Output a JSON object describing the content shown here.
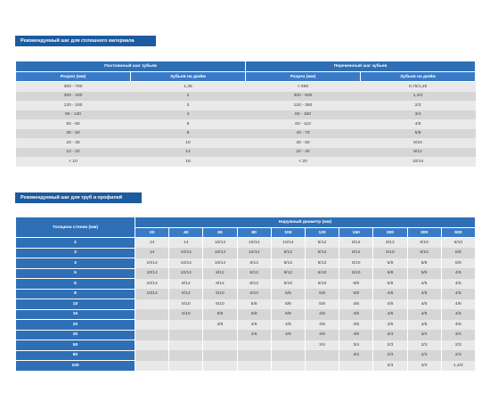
{
  "section1": {
    "title": "Рекомендуемый шаг для сплошного материала"
  },
  "table1": {
    "group_headers": [
      "Постоянный шаг зубьев",
      "Переменный шаг зубьев"
    ],
    "sub_headers": [
      "Разрез (мм)",
      "Зубьев на дюйм",
      "Разрез (мм)",
      "Зубьев на дюйм"
    ],
    "rows": [
      [
        "300 - 700",
        "1,25",
        "> 550",
        "0,75/1,25"
      ],
      [
        "300 - 400",
        "2",
        "300 - 600",
        "1,4/2"
      ],
      [
        "120 - 200",
        "3",
        "120 - 350",
        "2/3"
      ],
      [
        "80 - 120",
        "4",
        "80 - 150",
        "3/4"
      ],
      [
        "50 - 80",
        "6",
        "60 - 110",
        "4/6"
      ],
      [
        "30 - 50",
        "8",
        "40 - 70",
        "5/8"
      ],
      [
        "20 - 30",
        "10",
        "30 - 60",
        "6/10"
      ],
      [
        "10 - 20",
        "14",
        "20 - 40",
        "8/12"
      ],
      [
        "< 10",
        "18",
        "< 20",
        "10/14"
      ]
    ]
  },
  "section2": {
    "title": "Рекомендуемый шаг для труб и профилей"
  },
  "table2": {
    "corner_header": "Толщина стенки (мм)",
    "group_header": "Наружный диаметр (мм)",
    "diameters": [
      "20",
      "40",
      "60",
      "80",
      "100",
      "120",
      "150",
      "200",
      "300",
      "500"
    ],
    "rows": [
      {
        "thickness": "2",
        "cells": [
          "14",
          "14",
          "10/14",
          "10/14",
          "10/14",
          "8/12",
          "8/12",
          "8/12",
          "6/10",
          "6/10"
        ]
      },
      {
        "thickness": "3",
        "cells": [
          "14",
          "10/14",
          "10/14",
          "10/14",
          "8/12",
          "8/12",
          "8/12",
          "6/10",
          "6/10",
          "5/8"
        ]
      },
      {
        "thickness": "4",
        "cells": [
          "10/14",
          "10/14",
          "10/14",
          "8/12",
          "8/12",
          "8/12",
          "6/10",
          "5/8",
          "5/8",
          "5/8"
        ]
      },
      {
        "thickness": "5",
        "cells": [
          "10/14",
          "10/14",
          "8/12",
          "8/12",
          "8/12",
          "6/10",
          "6/10",
          "5/8",
          "5/8",
          "4/6"
        ]
      },
      {
        "thickness": "6",
        "cells": [
          "10/14",
          "8/12",
          "8/12",
          "8/12",
          "6/10",
          "6/10",
          "5/8",
          "5/8",
          "4/6",
          "4/6"
        ]
      },
      {
        "thickness": "8",
        "cells": [
          "10/14",
          "8/12",
          "6/10",
          "6/10",
          "5/8",
          "5/8",
          "5/8",
          "4/6",
          "4/6",
          "4/6"
        ]
      },
      {
        "thickness": "10",
        "cells": [
          "",
          "6/10",
          "6/10",
          "5/8",
          "5/8",
          "5/8",
          "4/6",
          "4/6",
          "4/6",
          "4/6"
        ]
      },
      {
        "thickness": "15",
        "cells": [
          "",
          "6/10",
          "5/8",
          "5/8",
          "5/8",
          "4/6",
          "4/6",
          "4/6",
          "4/6",
          "4/6"
        ]
      },
      {
        "thickness": "20",
        "cells": [
          "",
          "",
          "4/6",
          "4/6",
          "4/6",
          "4/6",
          "4/6",
          "4/6",
          "4/6",
          "4/6"
        ]
      },
      {
        "thickness": "30",
        "cells": [
          "",
          "",
          "",
          "4/6",
          "4/6",
          "4/6",
          "4/6",
          "3/4",
          "3/4",
          "3/4"
        ]
      },
      {
        "thickness": "50",
        "cells": [
          "",
          "",
          "",
          "",
          "",
          "3/4",
          "3/4",
          "2/3",
          "2/3",
          "2/3"
        ]
      },
      {
        "thickness": "80",
        "cells": [
          "",
          "",
          "",
          "",
          "",
          "",
          "3/4",
          "2/3",
          "2/3",
          "2/3"
        ]
      },
      {
        "thickness": "100",
        "cells": [
          "",
          "",
          "",
          "",
          "",
          "",
          "",
          "2/3",
          "2/3",
          "1,4/2"
        ]
      }
    ]
  }
}
